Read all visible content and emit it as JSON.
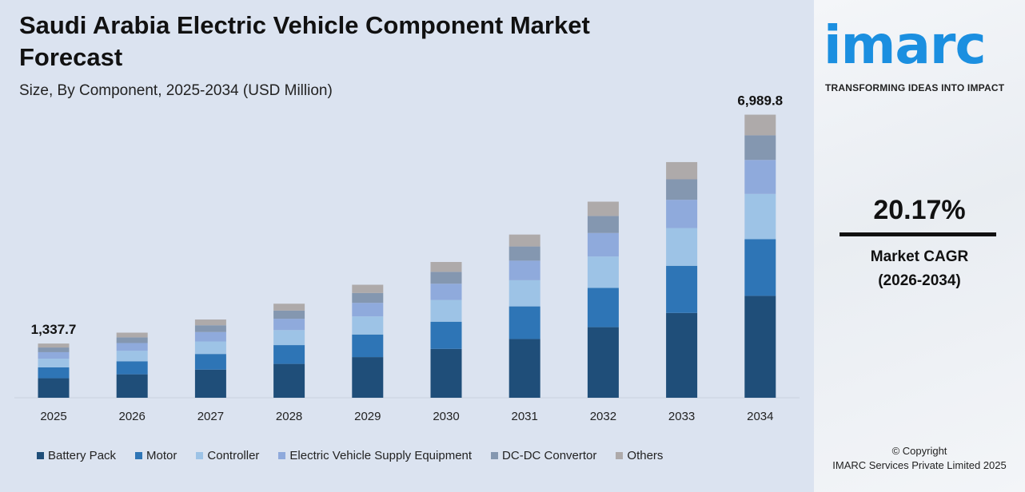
{
  "header": {
    "title": "Saudi Arabia Electric Vehicle Component Market Forecast",
    "subtitle": "Size, By Component, 2025-2034 (USD Million)"
  },
  "chart_data": {
    "type": "bar",
    "stacked": true,
    "categories": [
      "2025",
      "2026",
      "2027",
      "2028",
      "2029",
      "2030",
      "2031",
      "2032",
      "2033",
      "2034"
    ],
    "series": [
      {
        "name": "Battery Pack",
        "color": "#1f4e79",
        "values": [
          482,
          579,
          695,
          836,
          1004,
          1207,
          1450,
          1743,
          2094,
          2516
        ]
      },
      {
        "name": "Motor",
        "color": "#2e75b6",
        "values": [
          268,
          322,
          386,
          464,
          558,
          671,
          806,
          968,
          1164,
          1398
        ]
      },
      {
        "name": "Controller",
        "color": "#9dc3e6",
        "values": [
          214,
          257,
          309,
          371,
          446,
          536,
          645,
          775,
          931,
          1118
        ]
      },
      {
        "name": "Electric Vehicle Supply Equipment",
        "color": "#8faadc",
        "values": [
          161,
          193,
          232,
          279,
          335,
          402,
          483,
          581,
          698,
          839
        ]
      },
      {
        "name": "DC-DC Convertor",
        "color": "#8497b0",
        "values": [
          116,
          140,
          168,
          202,
          243,
          292,
          351,
          421,
          506,
          608
        ]
      },
      {
        "name": "Others",
        "color": "#aeaaaa",
        "values": [
          97,
          116,
          142,
          170,
          204,
          244,
          294,
          353,
          425,
          510
        ]
      }
    ],
    "data_labels": {
      "2025": "1,337.7",
      "2034": "6,989.8"
    },
    "ylim": [
      0,
      7000
    ],
    "grid": false,
    "legend": "bottom"
  },
  "side": {
    "logo": "imarc",
    "tagline": "TRANSFORMING IDEAS INTO IMPACT",
    "cagr_value": "20.17%",
    "cagr_label": "Market CAGR",
    "cagr_period": "(2026-2034)",
    "copyright": "© Copyright",
    "company": "IMARC Services Private Limited 2025"
  }
}
